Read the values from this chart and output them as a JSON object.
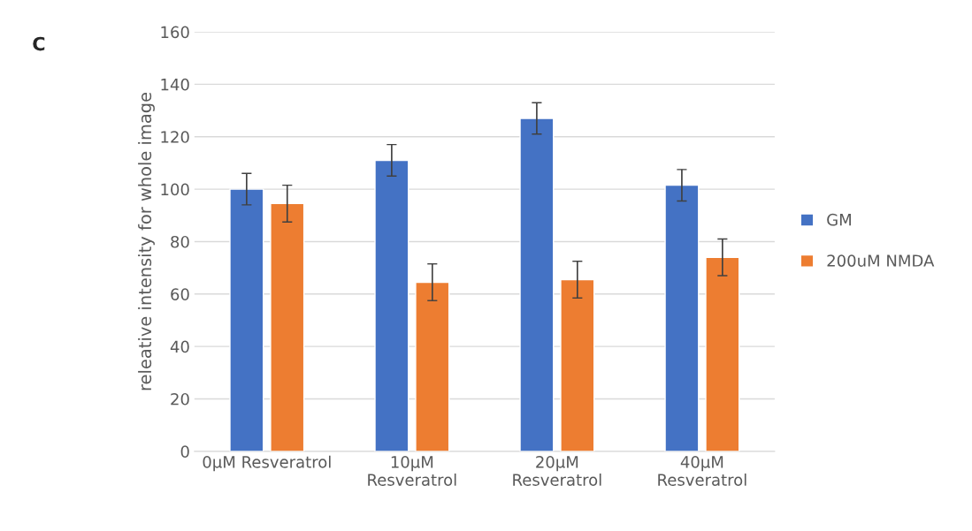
{
  "chart_data": {
    "type": "bar",
    "ylabel": "releative intensity for whole image",
    "categories": [
      "0µM Resveratrol",
      "10µM\nResveratrol",
      "20µM\nResveratrol",
      "40µM\nResveratrol"
    ],
    "series": [
      {
        "name": "GM",
        "color": "#4472c4",
        "values": [
          100,
          111,
          127,
          101.5
        ],
        "errors": [
          6,
          6,
          6,
          6
        ]
      },
      {
        "name": "200uM NMDA",
        "color": "#ed7d31",
        "values": [
          94.5,
          64.5,
          65.5,
          74
        ],
        "errors": [
          7,
          7,
          7,
          7
        ]
      }
    ],
    "ylim": [
      0,
      160
    ],
    "yticks": [
      0,
      20,
      40,
      60,
      80,
      100,
      120,
      140,
      160
    ],
    "grid": "y",
    "legend": "right",
    "annotations": [
      "C"
    ]
  }
}
